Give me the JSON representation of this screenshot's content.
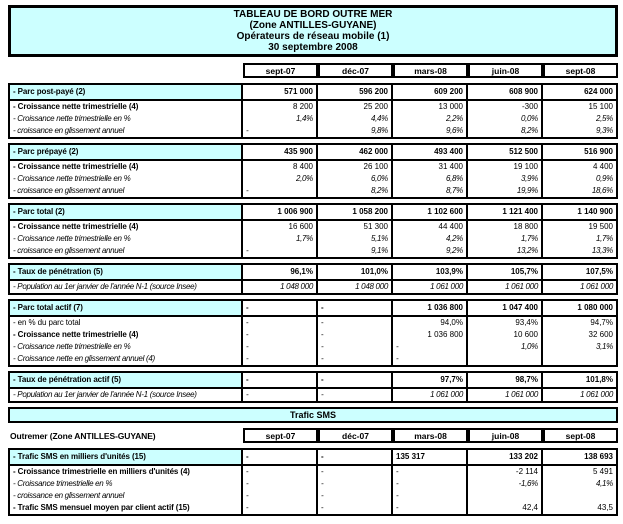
{
  "title_block": {
    "lines": [
      "TABLEAU DE BORD OUTRE MER",
      "(Zone ANTILLES-GUYANE)",
      "Opérateurs de réseau mobile (1)",
      "30 septembre 2008"
    ]
  },
  "columns": [
    "sept-07",
    "déc-07",
    "mars-08",
    "juin-08",
    "sept-08"
  ],
  "colors": {
    "highlight": "#CCFFFF",
    "border": "#000000",
    "background": "#FFFFFF"
  },
  "sections": [
    {
      "name": "parc-post-paye",
      "rows": [
        {
          "label": "- Parc post-payé (2)",
          "style": "header",
          "values": [
            "571 000",
            "596 200",
            "609 200",
            "608 900",
            "624 000"
          ]
        },
        {
          "label": "- Croissance nette trimestrielle (4)",
          "style": "bold",
          "values": [
            "8 200",
            "25 200",
            "13 000",
            "-300",
            "15 100"
          ]
        },
        {
          "label": "- Croissance nette trimestrielle en %",
          "style": "italic",
          "values": [
            "1,4%",
            "4,4%",
            "2,2%",
            "0,0%",
            "2,5%"
          ]
        },
        {
          "label": "- croissance en glissement annuel",
          "style": "italic",
          "values": [
            "-",
            "9,8%",
            "9,6%",
            "8,2%",
            "9,3%"
          ]
        }
      ]
    },
    {
      "name": "parc-prepaye",
      "rows": [
        {
          "label": "- Parc prépayé (2)",
          "style": "header",
          "values": [
            "435 900",
            "462 000",
            "493 400",
            "512 500",
            "516 900"
          ]
        },
        {
          "label": "- Croissance nette trimestrielle (4)",
          "style": "bold",
          "values": [
            "8 400",
            "26 100",
            "31 400",
            "19 100",
            "4 400"
          ]
        },
        {
          "label": "- Croissance nette trimestrielle en %",
          "style": "italic",
          "values": [
            "2,0%",
            "6,0%",
            "6,8%",
            "3,9%",
            "0,9%"
          ]
        },
        {
          "label": "- croissance en glissement annuel",
          "style": "italic",
          "values": [
            "-",
            "8,2%",
            "8,7%",
            "19,9%",
            "18,6%"
          ]
        }
      ]
    },
    {
      "name": "parc-total",
      "rows": [
        {
          "label": "- Parc total (2)",
          "style": "header",
          "values": [
            "1 006 900",
            "1 058 200",
            "1 102 600",
            "1 121 400",
            "1 140 900"
          ]
        },
        {
          "label": "- Croissance nette trimestrielle (4)",
          "style": "bold",
          "values": [
            "16 600",
            "51 300",
            "44 400",
            "18 800",
            "19 500"
          ]
        },
        {
          "label": "- Croissance nette trimestrielle en %",
          "style": "italic",
          "values": [
            "1,7%",
            "5,1%",
            "4,2%",
            "1,7%",
            "1,7%"
          ]
        },
        {
          "label": "- croissance en glissement annuel",
          "style": "italic",
          "values": [
            "-",
            "9,1%",
            "9,2%",
            "13,2%",
            "13,3%"
          ]
        }
      ]
    },
    {
      "name": "taux-de-penetration",
      "rows": [
        {
          "label": "- Taux de pénétration (5)",
          "style": "header",
          "values": [
            "96,1%",
            "101,0%",
            "103,9%",
            "105,7%",
            "107,5%"
          ]
        },
        {
          "label": "- Population au 1er janvier de l'année N-1 (source Insee)",
          "style": "italic",
          "values": [
            "1 048 000",
            "1 048 000",
            "1 061 000",
            "1 061 000",
            "1 061 000"
          ]
        }
      ]
    },
    {
      "name": "parc-total-actif",
      "rows": [
        {
          "label": "- Parc total actif (7)",
          "style": "header",
          "values": [
            "-",
            "-",
            "1 036 800",
            "1 047 400",
            "1 080 000"
          ]
        },
        {
          "label": "- en % du parc total",
          "style": "regular",
          "values": [
            "-",
            "-",
            "94,0%",
            "93,4%",
            "94,7%"
          ]
        },
        {
          "label": "- Croissance nette trimestrielle (4)",
          "style": "bold",
          "values": [
            "-",
            "-",
            "1 036 800",
            "10 600",
            "32 600"
          ]
        },
        {
          "label": "- Croissance nette trimestrielle en %",
          "style": "italic",
          "values": [
            "-",
            "-",
            "-",
            "1,0%",
            "3,1%"
          ]
        },
        {
          "label": "- Croissance nette en glissement annuel (4)",
          "style": "italic",
          "values": [
            "-",
            "-",
            "-",
            "",
            ""
          ]
        }
      ]
    },
    {
      "name": "taux-de-penetration-actif",
      "rows": [
        {
          "label": "- Taux de pénétration actif (5)",
          "style": "header",
          "values": [
            "-",
            "-",
            "97,7%",
            "98,7%",
            "101,8%"
          ]
        },
        {
          "label": "- Population au 1er janvier de l'année N-1 (source Insee)",
          "style": "italic",
          "values": [
            "-",
            "-",
            "1 061 000",
            "1 061 000",
            "1 061 000"
          ]
        }
      ]
    }
  ],
  "sms": {
    "band_title": "Trafic SMS",
    "header_label": "Outremer (Zone ANTILLES-GUYANE)",
    "section": {
      "name": "trafic-sms",
      "rows": [
        {
          "label": "- Trafic SMS en milliers d'unités (15)",
          "style": "header",
          "values": [
            "-",
            "-",
            "135 317",
            "133 202",
            "138 693"
          ],
          "aligns": [
            null,
            null,
            "left",
            null,
            null
          ]
        },
        {
          "label": "- Croissance trimestrielle en milliers d'unités (4)",
          "style": "bold",
          "values": [
            "-",
            "-",
            "-",
            "-2 114",
            "5 491"
          ]
        },
        {
          "label": "- Croissance trimestrielle en %",
          "style": "italic",
          "values": [
            "-",
            "-",
            "-",
            "-1,6%",
            "4,1%"
          ]
        },
        {
          "label": "- croissance en glissement annuel",
          "style": "italic",
          "values": [
            "-",
            "-",
            "-",
            "",
            ""
          ]
        },
        {
          "label": "- Trafic SMS mensuel moyen par client actif (15)",
          "style": "bold",
          "values": [
            "-",
            "-",
            "-",
            "42,4",
            "43,5"
          ]
        }
      ]
    }
  }
}
